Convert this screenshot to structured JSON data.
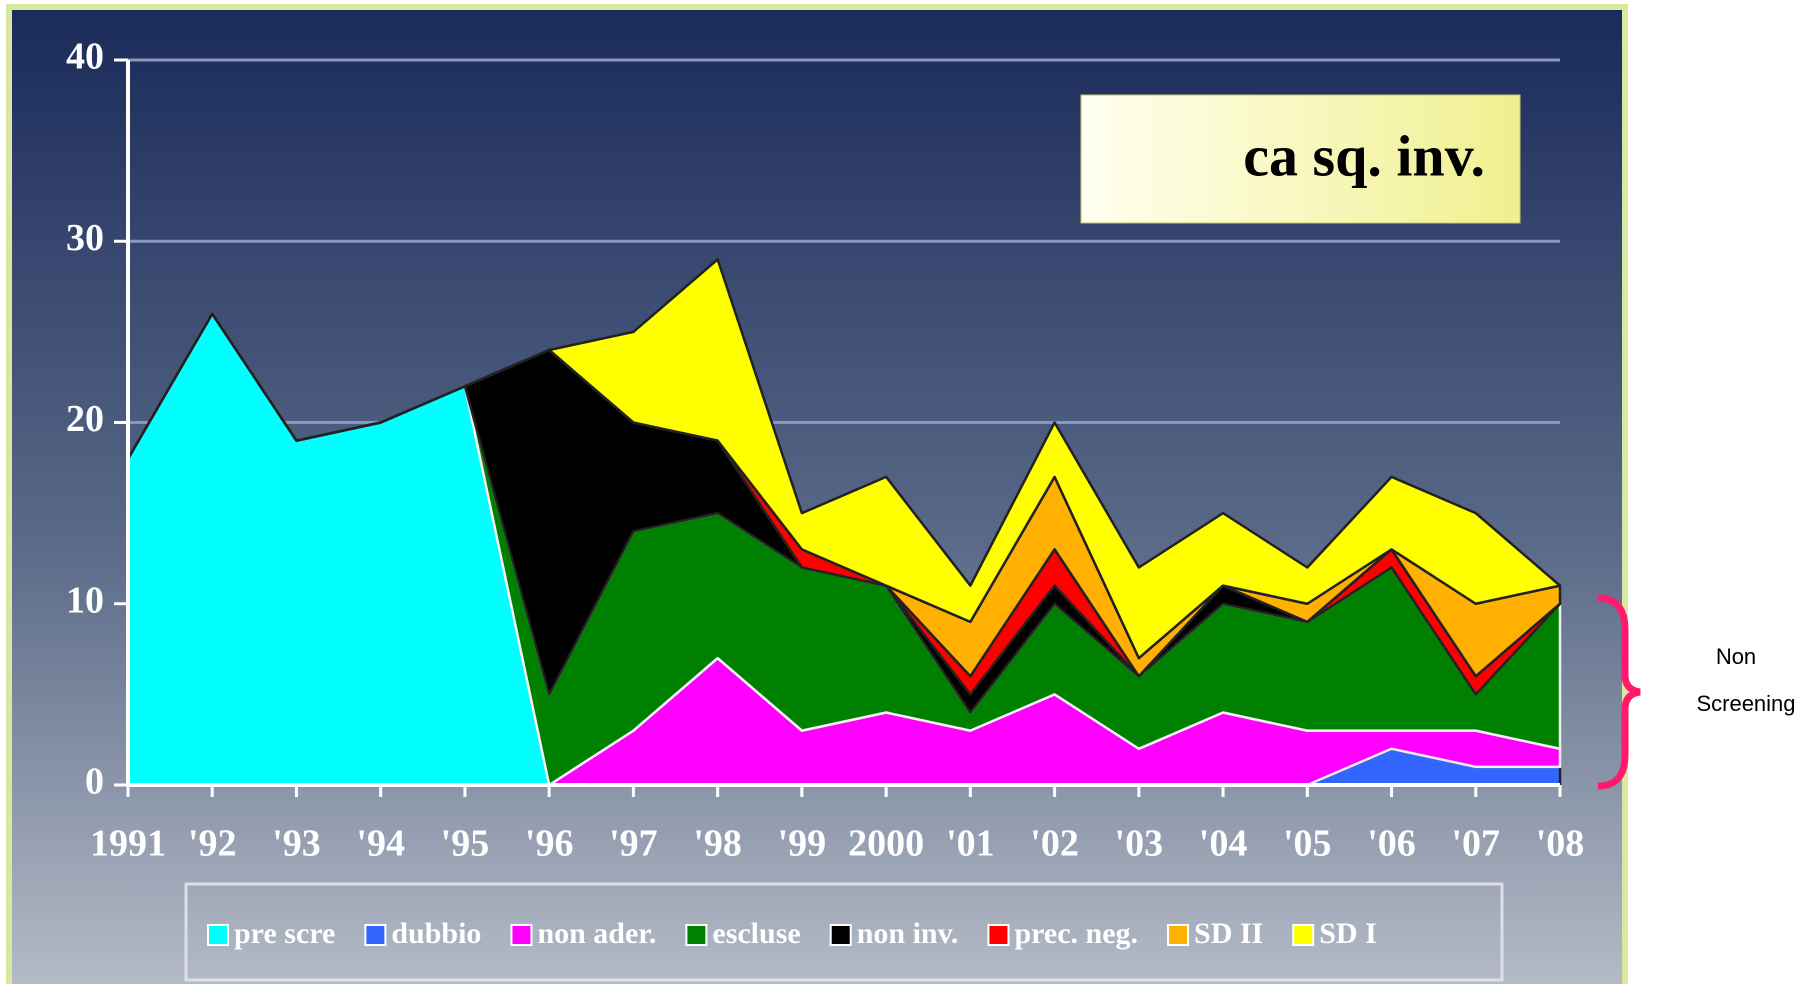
{
  "chart_data": {
    "type": "stacked_area",
    "title": "ca sq. inv.",
    "annotation": [
      "Non",
      "Screening"
    ],
    "categories": [
      "1991",
      "'92",
      "'93",
      "'94",
      "'95",
      "'96",
      "'97",
      "'98",
      "'99",
      "2000",
      "'01",
      "'02",
      "'03",
      "'04",
      "'05",
      "'06",
      "'07",
      "'08"
    ],
    "series": [
      {
        "name": "pre scre",
        "color": "#00ffff",
        "values": [
          18,
          26,
          19,
          20,
          22,
          0,
          0,
          0,
          0,
          0,
          0,
          0,
          0,
          0,
          0,
          0,
          0,
          0
        ]
      },
      {
        "name": "dubbio",
        "color": "#3366ff",
        "values": [
          0,
          0,
          0,
          0,
          0,
          0,
          0,
          0,
          0,
          0,
          0,
          0,
          0,
          0,
          0,
          2,
          1,
          1
        ]
      },
      {
        "name": "non ader.",
        "color": "#ff00ff",
        "values": [
          0,
          0,
          0,
          0,
          0,
          0,
          3,
          7,
          3,
          4,
          3,
          5,
          2,
          4,
          3,
          1,
          2,
          1
        ]
      },
      {
        "name": "escluse",
        "color": "#008000",
        "values": [
          0,
          0,
          0,
          0,
          0,
          5,
          11,
          8,
          9,
          7,
          1,
          5,
          4,
          6,
          6,
          9,
          2,
          8
        ]
      },
      {
        "name": "non inv.",
        "color": "#000000",
        "values": [
          0,
          0,
          0,
          0,
          0,
          19,
          6,
          4,
          0,
          0,
          1,
          1,
          0,
          1,
          0,
          0,
          0,
          0
        ]
      },
      {
        "name": "prec. neg.",
        "color": "#ff0000",
        "values": [
          0,
          0,
          0,
          0,
          0,
          0,
          0,
          0,
          1,
          0,
          1,
          2,
          0,
          0,
          0,
          1,
          1,
          0
        ]
      },
      {
        "name": "SD II",
        "color": "#ffb000",
        "values": [
          0,
          0,
          0,
          0,
          0,
          0,
          0,
          0,
          0,
          0,
          3,
          4,
          1,
          0,
          1,
          0,
          4,
          1
        ]
      },
      {
        "name": "SD I",
        "color": "#ffff00",
        "values": [
          0,
          0,
          0,
          0,
          0,
          0,
          5,
          10,
          2,
          6,
          2,
          3,
          5,
          4,
          2,
          4,
          5,
          0
        ]
      }
    ],
    "ylim": [
      0,
      40
    ],
    "yticks": [
      0,
      10,
      20,
      30,
      40
    ],
    "grid": true
  }
}
